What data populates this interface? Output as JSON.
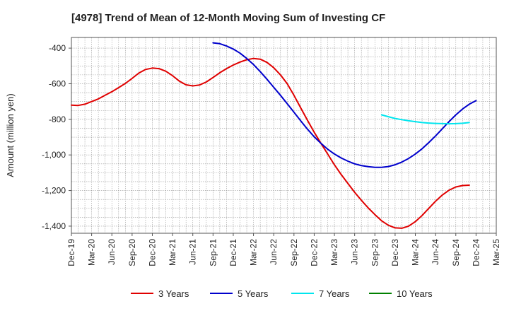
{
  "chart_data": {
    "type": "line",
    "title": "[4978]  Trend of Mean of 12-Month Moving Sum of Investing CF",
    "xlabel": "",
    "ylabel": "Amount (million yen)",
    "ylim": [
      -1440,
      -340
    ],
    "yticks": [
      -400,
      -600,
      -800,
      -1000,
      -1200,
      -1400
    ],
    "ytick_labels": [
      "-400",
      "-600",
      "-800",
      "-1,000",
      "-1,200",
      "-1,400"
    ],
    "xtick_labels": [
      "Dec-19",
      "Mar-20",
      "Jun-20",
      "Sep-20",
      "Dec-20",
      "Mar-21",
      "Jun-21",
      "Sep-21",
      "Dec-21",
      "Mar-22",
      "Jun-22",
      "Sep-22",
      "Dec-22",
      "Mar-23",
      "Jun-23",
      "Sep-23",
      "Dec-23",
      "Mar-24",
      "Jun-24",
      "Sep-24",
      "Dec-24",
      "Mar-25"
    ],
    "grid": true,
    "legend_position": "bottom",
    "series": [
      {
        "name": "3 Years",
        "color": "#e00000",
        "start_index": 0,
        "values": [
          -720,
          -722,
          -715,
          -700,
          -685,
          -665,
          -645,
          -622,
          -598,
          -570,
          -540,
          -520,
          -512,
          -515,
          -530,
          -555,
          -585,
          -606,
          -612,
          -607,
          -590,
          -565,
          -538,
          -515,
          -495,
          -478,
          -465,
          -458,
          -462,
          -480,
          -510,
          -550,
          -600,
          -665,
          -735,
          -805,
          -872,
          -935,
          -995,
          -1055,
          -1110,
          -1160,
          -1210,
          -1255,
          -1297,
          -1335,
          -1370,
          -1395,
          -1410,
          -1412,
          -1400,
          -1375,
          -1340,
          -1300,
          -1260,
          -1225,
          -1198,
          -1180,
          -1172,
          -1170
        ]
      },
      {
        "name": "5 Years",
        "color": "#0000cc",
        "start_index": 21,
        "values": [
          -370,
          -375,
          -388,
          -405,
          -428,
          -458,
          -492,
          -532,
          -575,
          -620,
          -665,
          -712,
          -760,
          -808,
          -855,
          -898,
          -935,
          -968,
          -995,
          -1017,
          -1035,
          -1050,
          -1060,
          -1066,
          -1070,
          -1070,
          -1065,
          -1055,
          -1040,
          -1020,
          -995,
          -965,
          -930,
          -893,
          -853,
          -813,
          -775,
          -742,
          -715,
          -695
        ]
      },
      {
        "name": "7 Years",
        "color": "#00e5ee",
        "start_index": 46,
        "values": [
          -775,
          -785,
          -795,
          -802,
          -808,
          -813,
          -818,
          -821,
          -823,
          -824,
          -825,
          -824,
          -822,
          -818
        ]
      },
      {
        "name": "10 Years",
        "color": "#008000",
        "start_index": 0,
        "values": []
      }
    ]
  }
}
